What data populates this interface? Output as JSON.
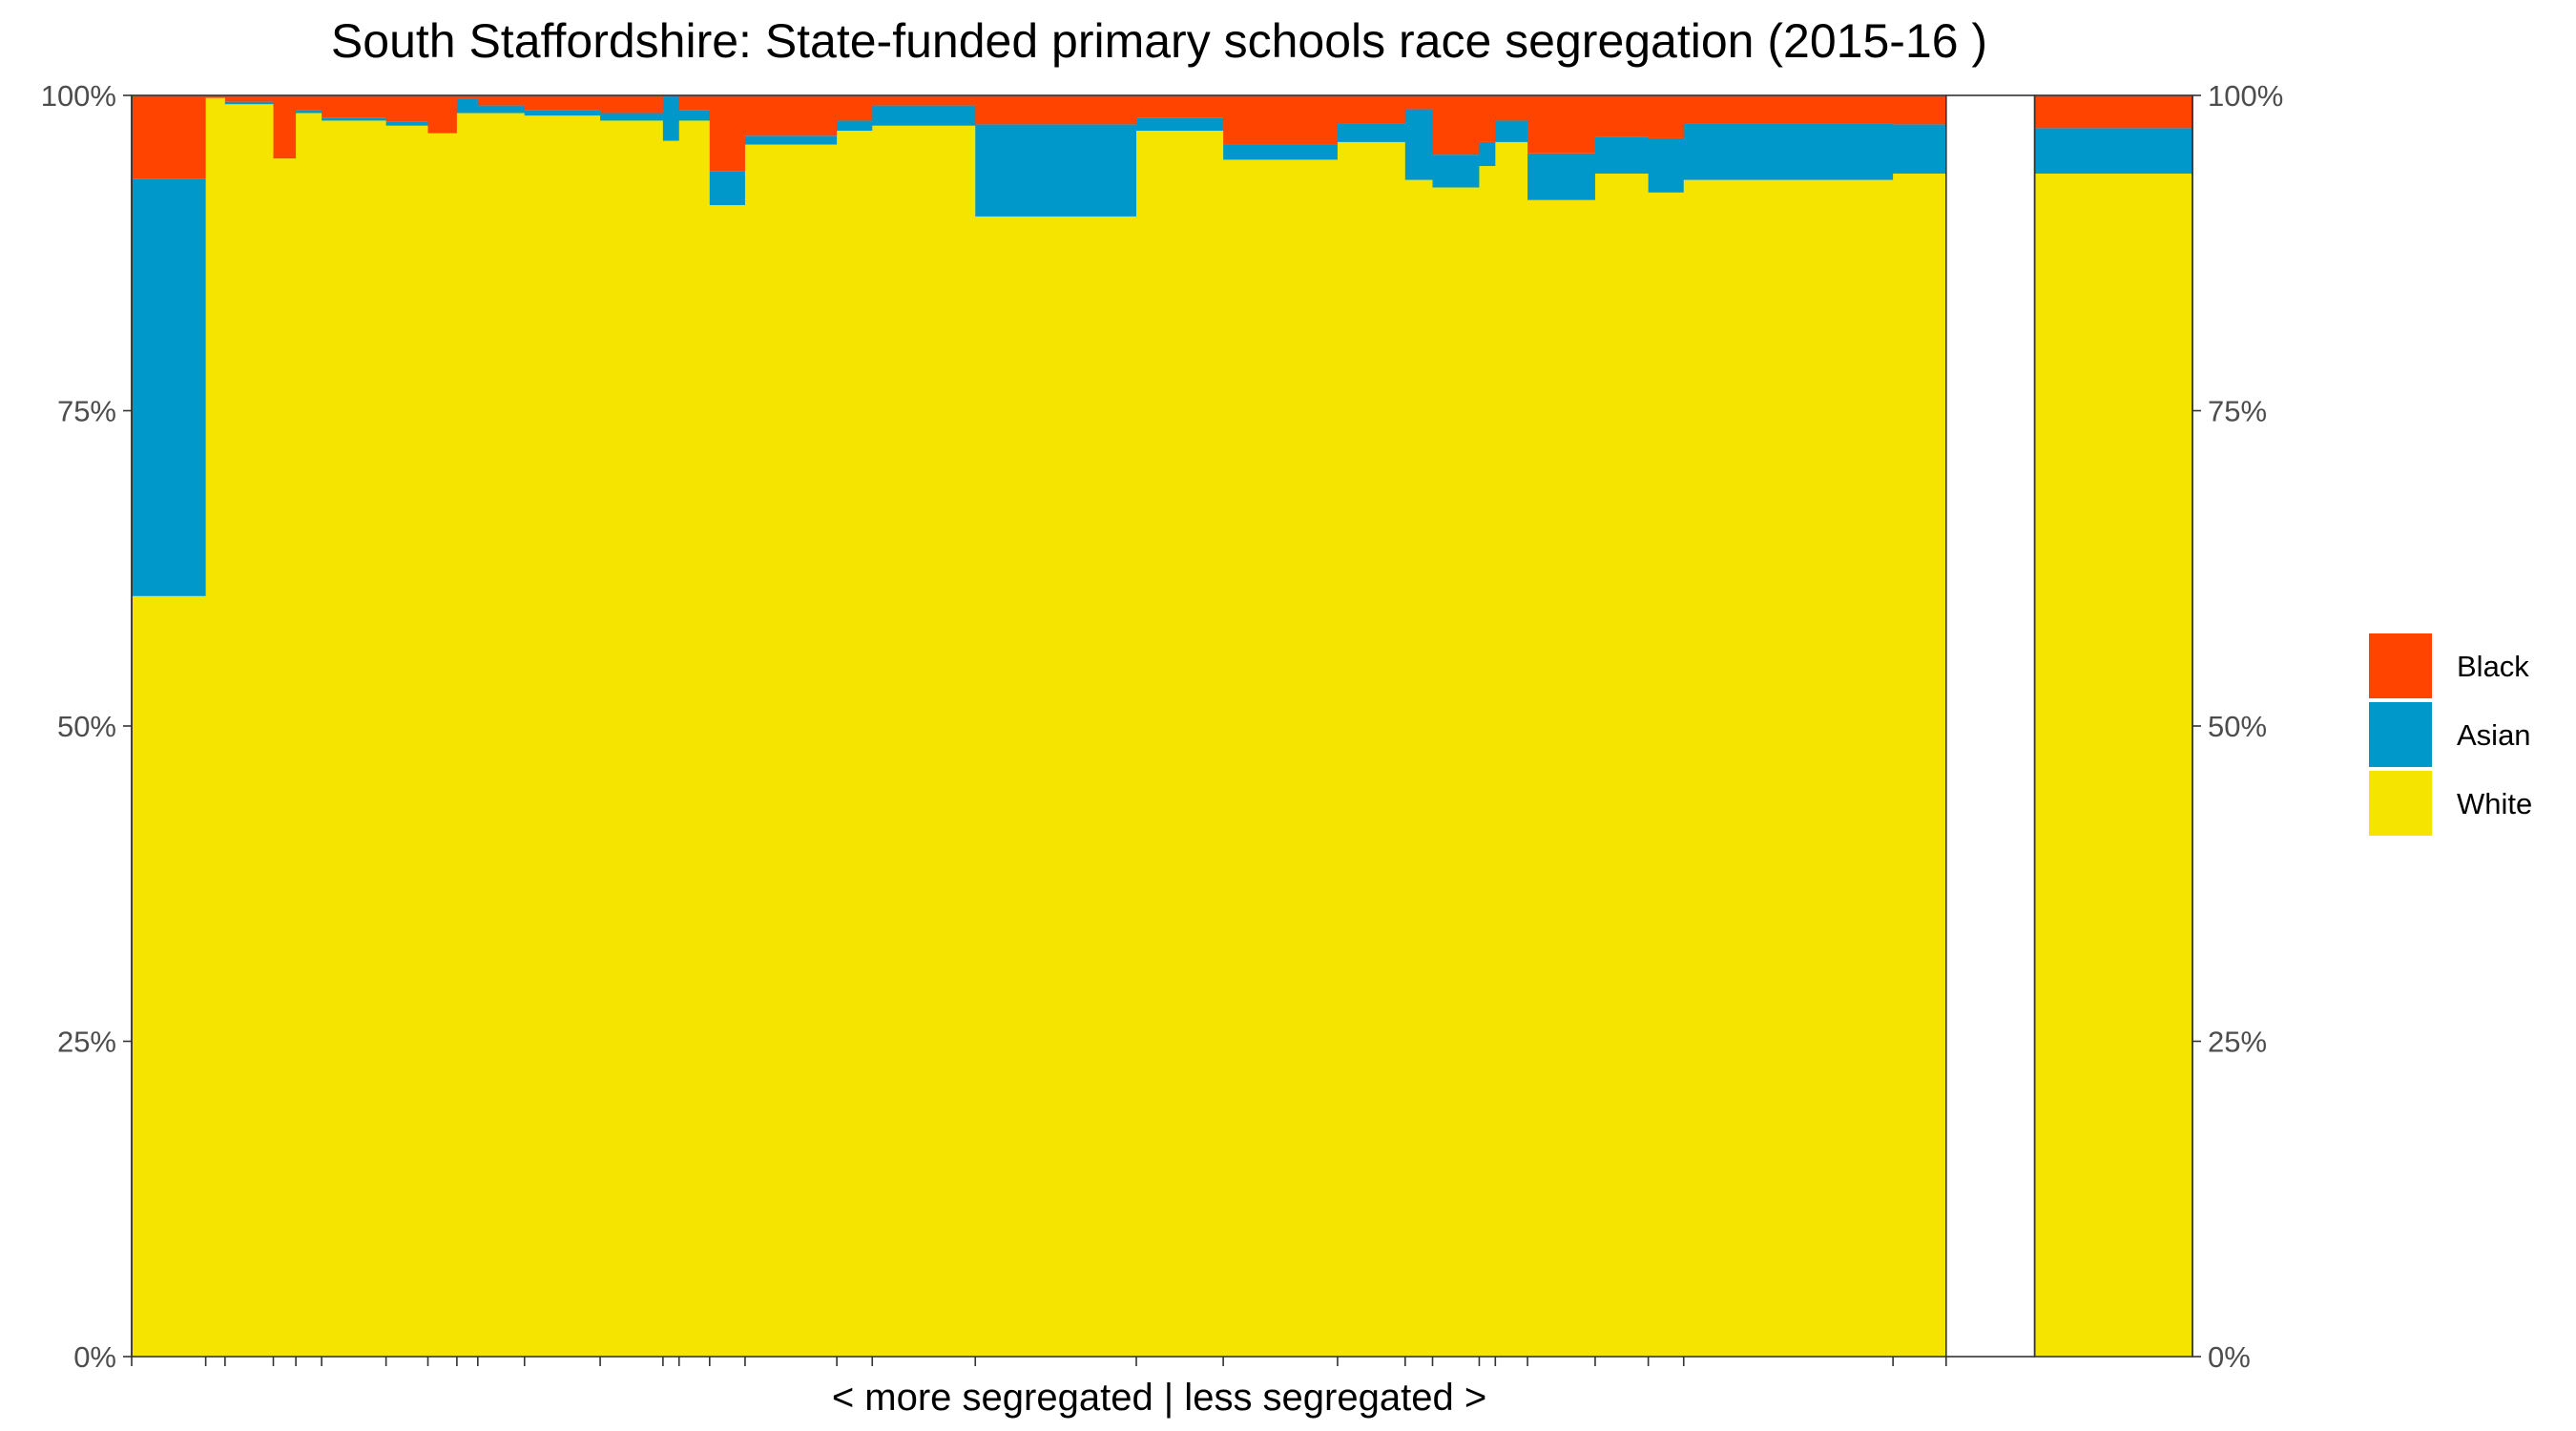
{
  "chart_data": {
    "type": "bar",
    "subtype": "stacked-100-variable-width",
    "title": "South Staffordshire: State-funded primary schools race segregation (2015-16 )",
    "xlabel": "< more segregated | less segregated >",
    "ylabel": "",
    "ylim": [
      0,
      100
    ],
    "y_ticks": [
      "0%",
      "25%",
      "50%",
      "75%",
      "100%"
    ],
    "y_tick_values": [
      0,
      25,
      50,
      75,
      100
    ],
    "legend": {
      "placement": "right",
      "entries": [
        "Black",
        "Asian",
        "White"
      ]
    },
    "colors": {
      "White": "#F5E400",
      "Asian": "#0098CB",
      "Black": "#FF4400",
      "Other": "#F5E400"
    },
    "grid": false,
    "schools": [
      {
        "width": 46,
        "white": 60.3,
        "asian": 33.1,
        "black": 6.6
      },
      {
        "width": 12,
        "white": 99.8,
        "asian": 0.0,
        "black": 0.2
      },
      {
        "width": 30,
        "white": 99.3,
        "asian": 0.2,
        "black": 0.5
      },
      {
        "width": 14,
        "white": 95.0,
        "asian": 0.0,
        "black": 5.0
      },
      {
        "width": 16,
        "white": 98.6,
        "asian": 0.2,
        "black": 1.2
      },
      {
        "width": 40,
        "white": 98.0,
        "asian": 0.2,
        "black": 1.8
      },
      {
        "width": 26,
        "white": 97.6,
        "asian": 0.3,
        "black": 2.1
      },
      {
        "width": 18,
        "white": 97.0,
        "asian": 0.0,
        "black": 3.0
      },
      {
        "width": 13,
        "white": 98.6,
        "asian": 1.1,
        "black": 0.3
      },
      {
        "width": 29,
        "white": 98.6,
        "asian": 0.6,
        "black": 0.8
      },
      {
        "width": 47,
        "white": 98.4,
        "asian": 0.4,
        "black": 1.2
      },
      {
        "width": 39,
        "white": 98.0,
        "asian": 0.6,
        "black": 1.4
      },
      {
        "width": 10,
        "white": 96.4,
        "asian": 3.6,
        "black": 0.0
      },
      {
        "width": 19,
        "white": 98.0,
        "asian": 0.8,
        "black": 1.2
      },
      {
        "width": 22,
        "white": 91.3,
        "asian": 2.7,
        "black": 6.0
      },
      {
        "width": 57,
        "white": 96.1,
        "asian": 0.7,
        "black": 3.2
      },
      {
        "width": 22,
        "white": 97.2,
        "asian": 0.8,
        "black": 2.0
      },
      {
        "width": 64,
        "white": 97.6,
        "asian": 1.6,
        "black": 0.8
      },
      {
        "width": 100,
        "white": 90.4,
        "asian": 7.3,
        "black": 2.3
      },
      {
        "width": 54,
        "white": 97.2,
        "asian": 1.0,
        "black": 1.8
      },
      {
        "width": 71,
        "white": 94.9,
        "asian": 1.2,
        "black": 3.9
      },
      {
        "width": 42,
        "white": 96.3,
        "asian": 1.5,
        "black": 2.2
      },
      {
        "width": 17,
        "white": 93.3,
        "asian": 5.6,
        "black": 1.1
      },
      {
        "width": 29,
        "white": 92.7,
        "asian": 2.6,
        "black": 4.7
      },
      {
        "width": 10,
        "white": 94.4,
        "asian": 1.9,
        "black": 3.7
      },
      {
        "width": 20,
        "white": 96.3,
        "asian": 1.7,
        "black": 2.0
      },
      {
        "width": 42,
        "white": 91.7,
        "asian": 3.7,
        "black": 4.6
      },
      {
        "width": 33,
        "white": 93.8,
        "asian": 2.9,
        "black": 3.3
      },
      {
        "width": 22,
        "white": 92.3,
        "asian": 4.3,
        "black": 3.4
      },
      {
        "width": 130,
        "white": 93.3,
        "asian": 4.5,
        "black": 2.2
      },
      {
        "width": 33,
        "white": 93.8,
        "asian": 3.9,
        "black": 2.3
      }
    ],
    "gap_width": 55,
    "total": {
      "white": 93.8,
      "asian": 3.6,
      "black": 2.6
    }
  }
}
